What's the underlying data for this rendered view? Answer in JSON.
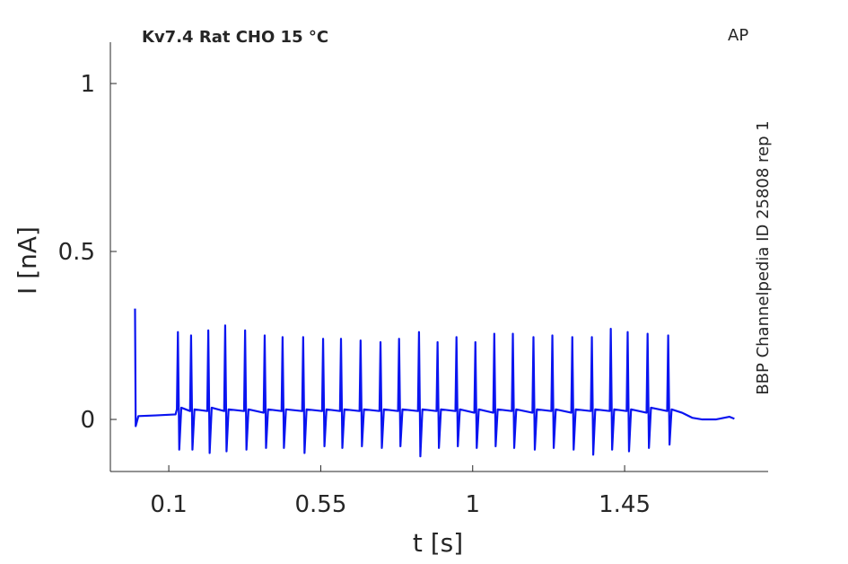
{
  "chart_data": {
    "type": "line",
    "title": "Kv7.4  Rat  CHO  15 °C",
    "annotation": "AP",
    "side_label": "BBP Channelpedia ID 25808 rep 1",
    "x_label": "t [s]",
    "y_label": "I [nA]",
    "color": "#0a14f0",
    "xlim": [
      -0.073,
      1.875
    ],
    "ylim": [
      -0.155,
      1.123
    ],
    "xticks": [
      0.1,
      0.55,
      1,
      1.45
    ],
    "yticks": [
      0,
      0.5,
      1
    ],
    "x": [
      0,
      0.002,
      0.01,
      0.06,
      0.12,
      0.124,
      0.127,
      0.131,
      0.137,
      0.163,
      0.166,
      0.17,
      0.176,
      0.214,
      0.217,
      0.221,
      0.227,
      0.264,
      0.267,
      0.271,
      0.277,
      0.323,
      0.326,
      0.33,
      0.336,
      0.381,
      0.384,
      0.388,
      0.394,
      0.434,
      0.437,
      0.441,
      0.447,
      0.495,
      0.498,
      0.502,
      0.508,
      0.554,
      0.557,
      0.561,
      0.567,
      0.607,
      0.61,
      0.614,
      0.62,
      0.665,
      0.668,
      0.672,
      0.678,
      0.724,
      0.727,
      0.731,
      0.737,
      0.779,
      0.782,
      0.786,
      0.792,
      0.838,
      0.841,
      0.845,
      0.851,
      0.893,
      0.896,
      0.9,
      0.906,
      0.949,
      0.952,
      0.956,
      0.962,
      1.005,
      1.008,
      1.012,
      1.018,
      1.061,
      1.064,
      1.068,
      1.074,
      1.116,
      1.119,
      1.123,
      1.129,
      1.177,
      1.18,
      1.184,
      1.19,
      1.233,
      1.236,
      1.24,
      1.246,
      1.292,
      1.295,
      1.299,
      1.305,
      1.35,
      1.353,
      1.357,
      1.363,
      1.406,
      1.409,
      1.413,
      1.419,
      1.456,
      1.459,
      1.463,
      1.469,
      1.515,
      1.518,
      1.522,
      1.528,
      1.576,
      1.579,
      1.583,
      1.589,
      1.62,
      1.65,
      1.68,
      1.72,
      1.76,
      1.775
    ],
    "values": [
      0.33,
      -0.02,
      0.01,
      0.012,
      0.015,
      0.03,
      0.26,
      -0.09,
      0.035,
      0.025,
      0.25,
      -0.09,
      0.03,
      0.025,
      0.265,
      -0.1,
      0.035,
      0.025,
      0.28,
      -0.095,
      0.03,
      0.025,
      0.265,
      -0.09,
      0.03,
      0.02,
      0.25,
      -0.085,
      0.03,
      0.025,
      0.245,
      -0.085,
      0.03,
      0.025,
      0.245,
      -0.1,
      0.03,
      0.025,
      0.24,
      -0.08,
      0.03,
      0.025,
      0.24,
      -0.085,
      0.03,
      0.025,
      0.235,
      -0.08,
      0.03,
      0.025,
      0.23,
      -0.085,
      0.03,
      0.025,
      0.24,
      -0.08,
      0.03,
      0.025,
      0.26,
      -0.11,
      0.03,
      0.025,
      0.23,
      -0.085,
      0.03,
      0.025,
      0.245,
      -0.08,
      0.03,
      0.02,
      0.23,
      -0.085,
      0.03,
      0.02,
      0.255,
      -0.08,
      0.03,
      0.025,
      0.255,
      -0.085,
      0.03,
      0.02,
      0.245,
      -0.09,
      0.03,
      0.025,
      0.25,
      -0.085,
      0.03,
      0.02,
      0.245,
      -0.09,
      0.03,
      0.025,
      0.245,
      -0.105,
      0.03,
      0.025,
      0.27,
      -0.09,
      0.03,
      0.025,
      0.26,
      -0.095,
      0.03,
      0.02,
      0.255,
      -0.085,
      0.035,
      0.025,
      0.25,
      -0.075,
      0.03,
      0.02,
      0.005,
      0.0,
      0.0,
      0.008,
      0.002
    ]
  }
}
